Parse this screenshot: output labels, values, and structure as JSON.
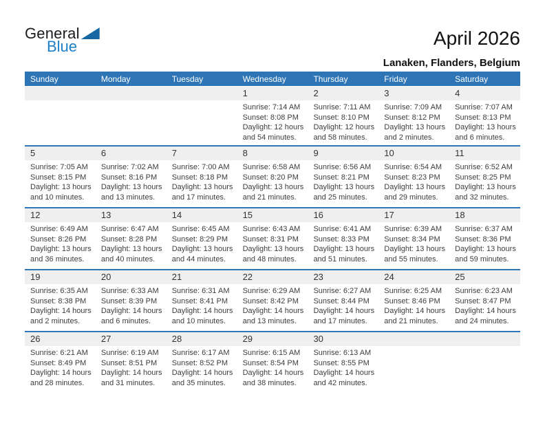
{
  "logo": {
    "general": "General",
    "blue": "Blue"
  },
  "header": {
    "title": "April 2026",
    "location": "Lanaken, Flanders, Belgium"
  },
  "weekdays": [
    "Sunday",
    "Monday",
    "Tuesday",
    "Wednesday",
    "Thursday",
    "Friday",
    "Saturday"
  ],
  "colors": {
    "header_blue": "#2e75b6",
    "separator_blue": "#2e75b6",
    "strip_gray": "#efefef",
    "logo_triangle_blue": "#1467a0",
    "logo_text_blue": "#1b7ec8"
  },
  "weeks": [
    [
      {
        "day": "",
        "lines": []
      },
      {
        "day": "",
        "lines": []
      },
      {
        "day": "",
        "lines": []
      },
      {
        "day": "1",
        "lines": [
          "Sunrise: 7:14 AM",
          "Sunset: 8:08 PM",
          "Daylight: 12 hours",
          "and 54 minutes."
        ]
      },
      {
        "day": "2",
        "lines": [
          "Sunrise: 7:11 AM",
          "Sunset: 8:10 PM",
          "Daylight: 12 hours",
          "and 58 minutes."
        ]
      },
      {
        "day": "3",
        "lines": [
          "Sunrise: 7:09 AM",
          "Sunset: 8:12 PM",
          "Daylight: 13 hours",
          "and 2 minutes."
        ]
      },
      {
        "day": "4",
        "lines": [
          "Sunrise: 7:07 AM",
          "Sunset: 8:13 PM",
          "Daylight: 13 hours",
          "and 6 minutes."
        ]
      }
    ],
    [
      {
        "day": "5",
        "lines": [
          "Sunrise: 7:05 AM",
          "Sunset: 8:15 PM",
          "Daylight: 13 hours",
          "and 10 minutes."
        ]
      },
      {
        "day": "6",
        "lines": [
          "Sunrise: 7:02 AM",
          "Sunset: 8:16 PM",
          "Daylight: 13 hours",
          "and 13 minutes."
        ]
      },
      {
        "day": "7",
        "lines": [
          "Sunrise: 7:00 AM",
          "Sunset: 8:18 PM",
          "Daylight: 13 hours",
          "and 17 minutes."
        ]
      },
      {
        "day": "8",
        "lines": [
          "Sunrise: 6:58 AM",
          "Sunset: 8:20 PM",
          "Daylight: 13 hours",
          "and 21 minutes."
        ]
      },
      {
        "day": "9",
        "lines": [
          "Sunrise: 6:56 AM",
          "Sunset: 8:21 PM",
          "Daylight: 13 hours",
          "and 25 minutes."
        ]
      },
      {
        "day": "10",
        "lines": [
          "Sunrise: 6:54 AM",
          "Sunset: 8:23 PM",
          "Daylight: 13 hours",
          "and 29 minutes."
        ]
      },
      {
        "day": "11",
        "lines": [
          "Sunrise: 6:52 AM",
          "Sunset: 8:25 PM",
          "Daylight: 13 hours",
          "and 32 minutes."
        ]
      }
    ],
    [
      {
        "day": "12",
        "lines": [
          "Sunrise: 6:49 AM",
          "Sunset: 8:26 PM",
          "Daylight: 13 hours",
          "and 36 minutes."
        ]
      },
      {
        "day": "13",
        "lines": [
          "Sunrise: 6:47 AM",
          "Sunset: 8:28 PM",
          "Daylight: 13 hours",
          "and 40 minutes."
        ]
      },
      {
        "day": "14",
        "lines": [
          "Sunrise: 6:45 AM",
          "Sunset: 8:29 PM",
          "Daylight: 13 hours",
          "and 44 minutes."
        ]
      },
      {
        "day": "15",
        "lines": [
          "Sunrise: 6:43 AM",
          "Sunset: 8:31 PM",
          "Daylight: 13 hours",
          "and 48 minutes."
        ]
      },
      {
        "day": "16",
        "lines": [
          "Sunrise: 6:41 AM",
          "Sunset: 8:33 PM",
          "Daylight: 13 hours",
          "and 51 minutes."
        ]
      },
      {
        "day": "17",
        "lines": [
          "Sunrise: 6:39 AM",
          "Sunset: 8:34 PM",
          "Daylight: 13 hours",
          "and 55 minutes."
        ]
      },
      {
        "day": "18",
        "lines": [
          "Sunrise: 6:37 AM",
          "Sunset: 8:36 PM",
          "Daylight: 13 hours",
          "and 59 minutes."
        ]
      }
    ],
    [
      {
        "day": "19",
        "lines": [
          "Sunrise: 6:35 AM",
          "Sunset: 8:38 PM",
          "Daylight: 14 hours",
          "and 2 minutes."
        ]
      },
      {
        "day": "20",
        "lines": [
          "Sunrise: 6:33 AM",
          "Sunset: 8:39 PM",
          "Daylight: 14 hours",
          "and 6 minutes."
        ]
      },
      {
        "day": "21",
        "lines": [
          "Sunrise: 6:31 AM",
          "Sunset: 8:41 PM",
          "Daylight: 14 hours",
          "and 10 minutes."
        ]
      },
      {
        "day": "22",
        "lines": [
          "Sunrise: 6:29 AM",
          "Sunset: 8:42 PM",
          "Daylight: 14 hours",
          "and 13 minutes."
        ]
      },
      {
        "day": "23",
        "lines": [
          "Sunrise: 6:27 AM",
          "Sunset: 8:44 PM",
          "Daylight: 14 hours",
          "and 17 minutes."
        ]
      },
      {
        "day": "24",
        "lines": [
          "Sunrise: 6:25 AM",
          "Sunset: 8:46 PM",
          "Daylight: 14 hours",
          "and 21 minutes."
        ]
      },
      {
        "day": "25",
        "lines": [
          "Sunrise: 6:23 AM",
          "Sunset: 8:47 PM",
          "Daylight: 14 hours",
          "and 24 minutes."
        ]
      }
    ],
    [
      {
        "day": "26",
        "lines": [
          "Sunrise: 6:21 AM",
          "Sunset: 8:49 PM",
          "Daylight: 14 hours",
          "and 28 minutes."
        ]
      },
      {
        "day": "27",
        "lines": [
          "Sunrise: 6:19 AM",
          "Sunset: 8:51 PM",
          "Daylight: 14 hours",
          "and 31 minutes."
        ]
      },
      {
        "day": "28",
        "lines": [
          "Sunrise: 6:17 AM",
          "Sunset: 8:52 PM",
          "Daylight: 14 hours",
          "and 35 minutes."
        ]
      },
      {
        "day": "29",
        "lines": [
          "Sunrise: 6:15 AM",
          "Sunset: 8:54 PM",
          "Daylight: 14 hours",
          "and 38 minutes."
        ]
      },
      {
        "day": "30",
        "lines": [
          "Sunrise: 6:13 AM",
          "Sunset: 8:55 PM",
          "Daylight: 14 hours",
          "and 42 minutes."
        ]
      },
      {
        "day": "",
        "lines": []
      },
      {
        "day": "",
        "lines": []
      }
    ]
  ]
}
